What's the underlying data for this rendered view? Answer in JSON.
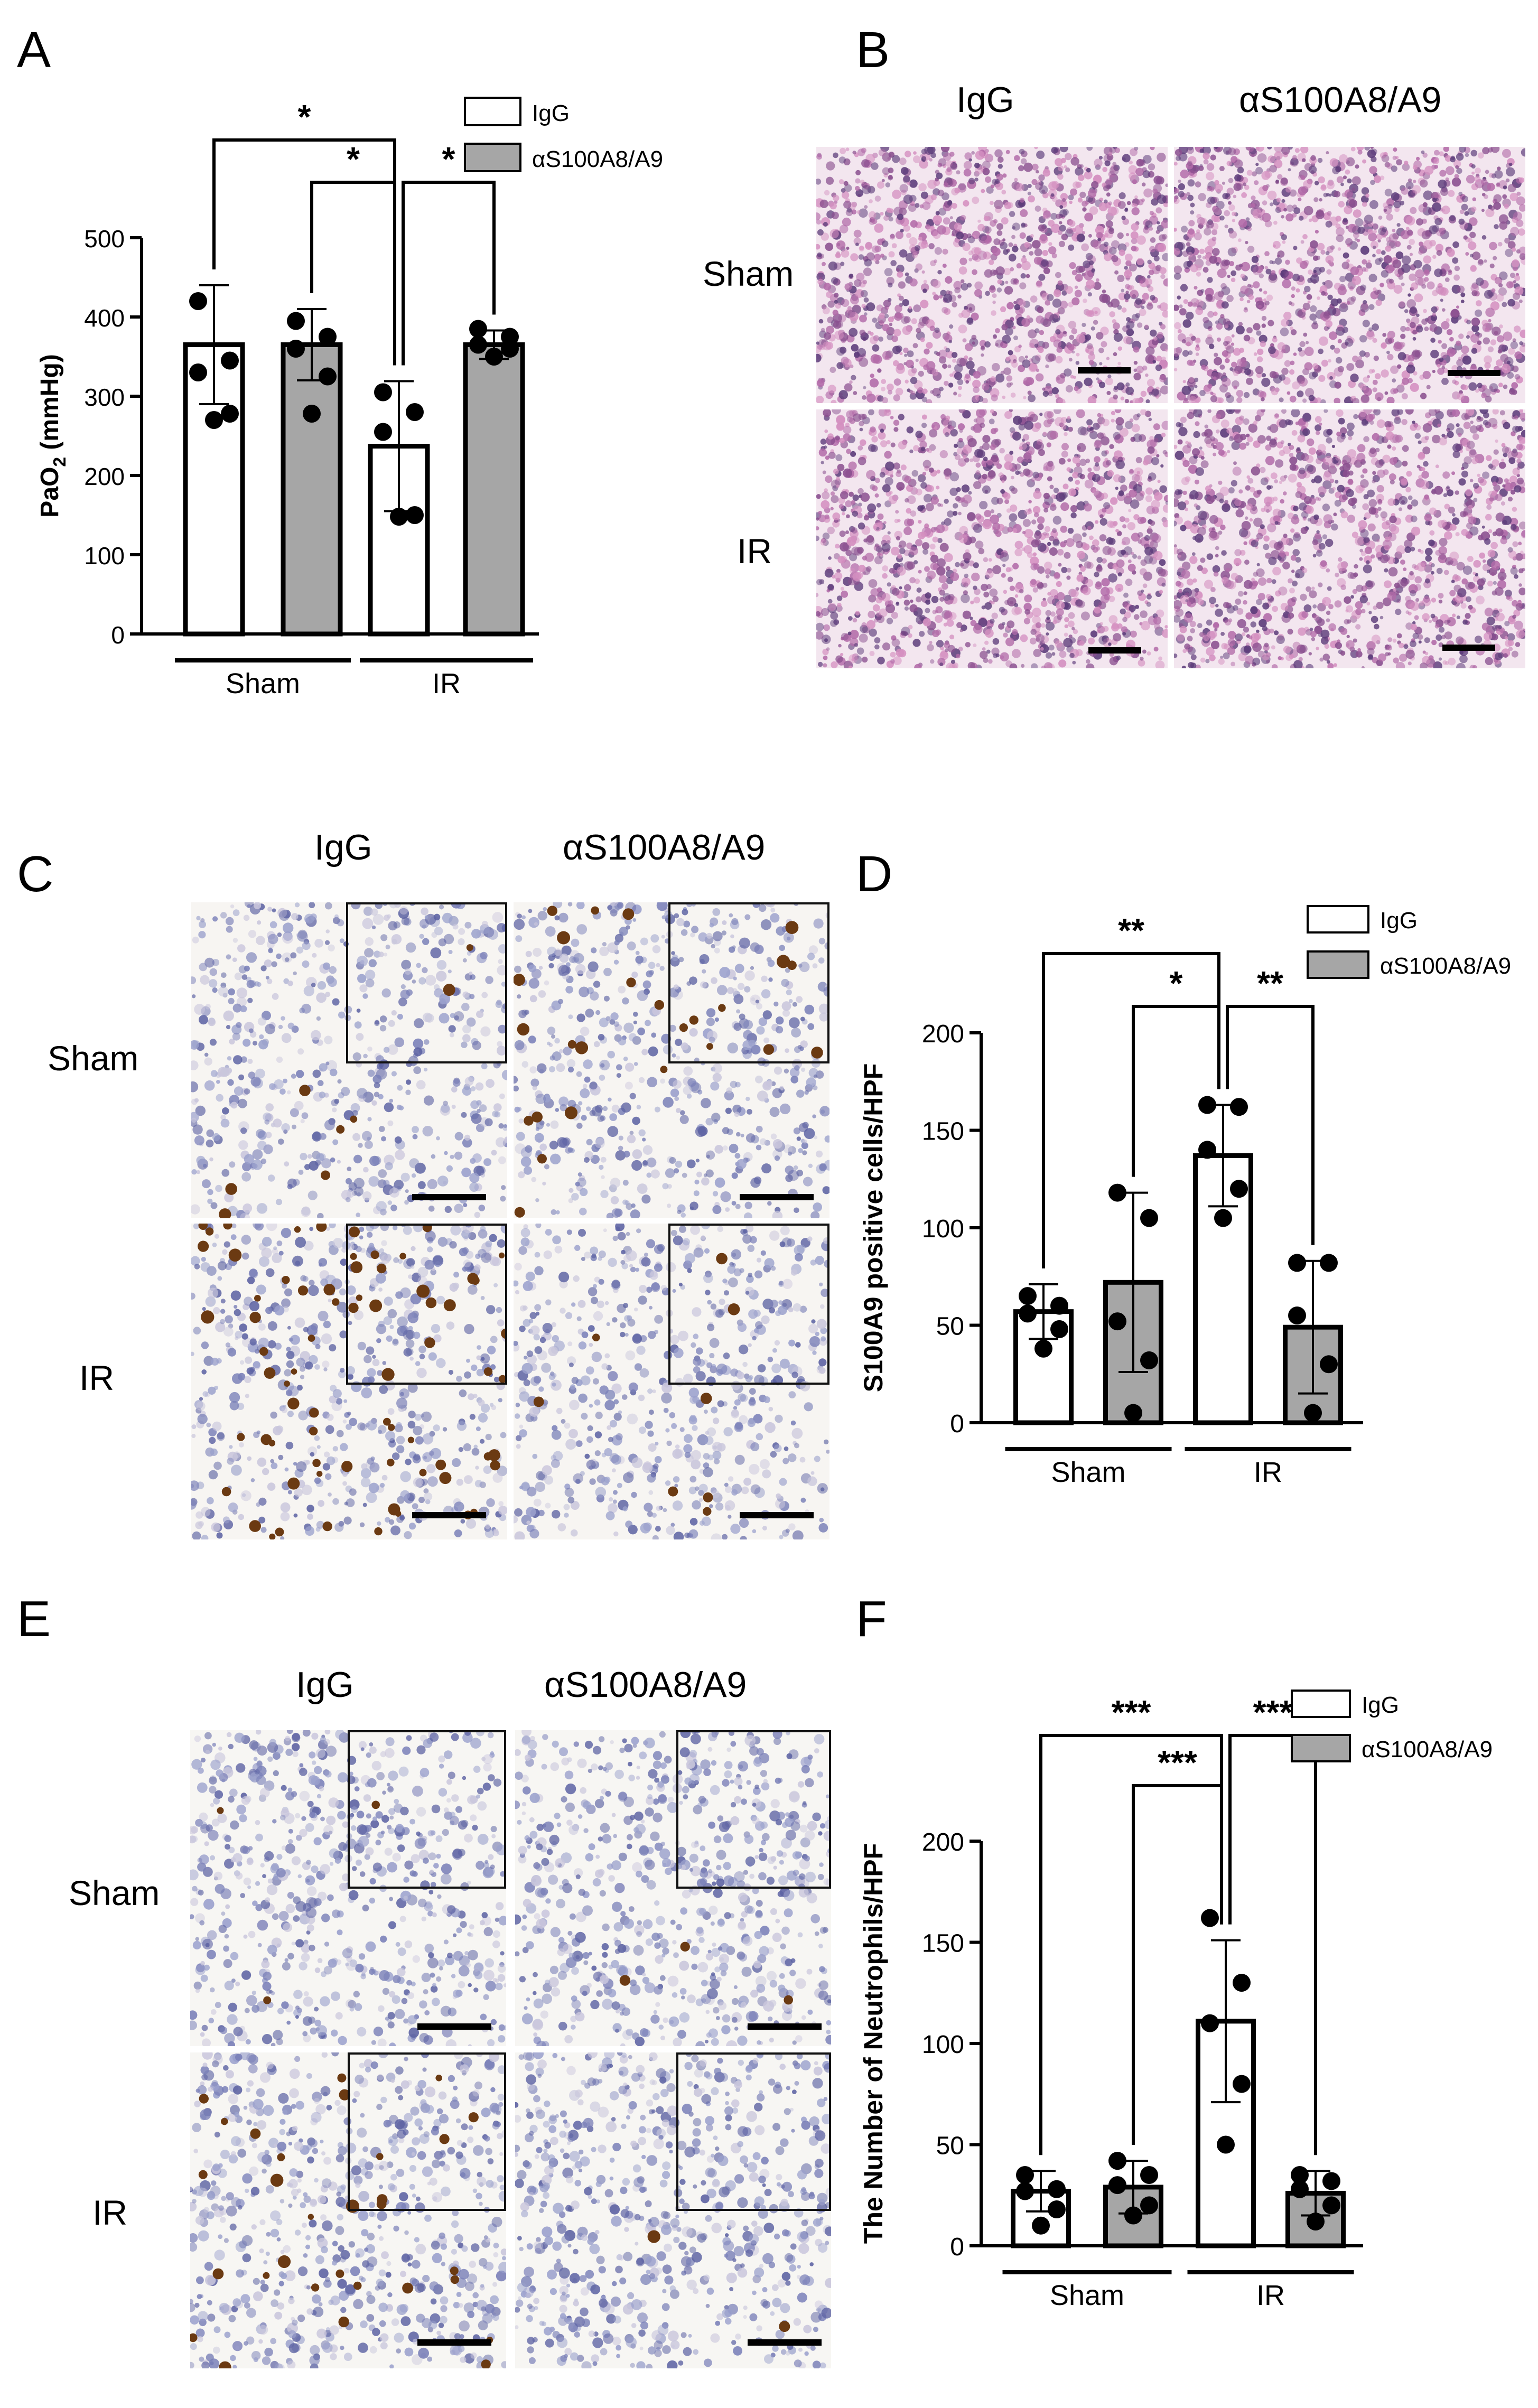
{
  "panels": {
    "A": "A",
    "B": "B",
    "C": "C",
    "D": "D",
    "E": "E",
    "F": "F"
  },
  "micrographs": {
    "col_igg": "IgG",
    "col_anti": "αS100A8/A9",
    "row_sham": "Sham",
    "row_ir": "IR"
  },
  "chart_data": [
    {
      "id": "A",
      "type": "bar",
      "categories": [
        "Sham IgG",
        "Sham αS100A8/A9",
        "IR IgG",
        "IR αS100A8/A9"
      ],
      "group_labels": [
        "Sham",
        "IR"
      ],
      "series": [
        {
          "name": "IgG",
          "color": "#ffffff",
          "bars": [
            0,
            2
          ]
        },
        {
          "name": "αS100A8/A9",
          "color": "#a6a6a6",
          "bars": [
            1,
            3
          ]
        }
      ],
      "values": [
        365,
        365,
        237,
        365
      ],
      "sd": [
        75,
        45,
        82,
        18
      ],
      "points": [
        [
          420,
          345,
          330,
          278,
          270
        ],
        [
          395,
          375,
          360,
          325,
          278
        ],
        [
          305,
          280,
          255,
          150,
          148
        ],
        [
          385,
          375,
          365,
          360,
          350
        ]
      ],
      "ylabel": "PaO2 (mmHg)",
      "ylabel_main": "PaO",
      "ylabel_sub": "2",
      "ylabel_unit": " (mmHg)",
      "ylim": [
        0,
        500
      ],
      "yticks": [
        "0",
        "100",
        "200",
        "300",
        "400",
        "500"
      ],
      "significance": [
        {
          "from": 0,
          "to": 2,
          "label": "*",
          "level": 1
        },
        {
          "from": 1,
          "to": 2,
          "label": "*",
          "level": 0
        },
        {
          "from": 2,
          "to": 3,
          "label": "*",
          "level": 0
        }
      ],
      "legend": [
        {
          "label": "IgG",
          "color": "#ffffff"
        },
        {
          "label": "αS100A8/A9",
          "color": "#a6a6a6"
        }
      ]
    },
    {
      "id": "D",
      "type": "bar",
      "categories": [
        "Sham IgG",
        "Sham αS100A8/A9",
        "IR IgG",
        "IR αS100A8/A9"
      ],
      "group_labels": [
        "Sham",
        "IR"
      ],
      "series": [
        {
          "name": "IgG",
          "color": "#ffffff",
          "bars": [
            0,
            2
          ]
        },
        {
          "name": "αS100A8/A9",
          "color": "#a6a6a6",
          "bars": [
            1,
            3
          ]
        }
      ],
      "values": [
        57,
        72,
        137,
        49
      ],
      "sd": [
        14,
        46,
        26,
        34
      ],
      "points": [
        [
          65,
          60,
          56,
          48,
          38
        ],
        [
          118,
          105,
          52,
          32,
          5
        ],
        [
          163,
          162,
          140,
          120,
          105
        ],
        [
          82,
          82,
          55,
          30,
          5
        ]
      ],
      "ylabel": "S100A9 positive cells/HPF",
      "ylim": [
        0,
        200
      ],
      "yticks": [
        "0",
        "50",
        "100",
        "150",
        "200"
      ],
      "significance": [
        {
          "from": 0,
          "to": 2,
          "label": "**",
          "level": 1
        },
        {
          "from": 1,
          "to": 2,
          "label": "*",
          "level": 0
        },
        {
          "from": 2,
          "to": 3,
          "label": "**",
          "level": 0
        }
      ],
      "legend": [
        {
          "label": "IgG",
          "color": "#ffffff"
        },
        {
          "label": "αS100A8/A9",
          "color": "#a6a6a6"
        }
      ]
    },
    {
      "id": "F",
      "type": "bar",
      "categories": [
        "Sham IgG",
        "Sham αS100A8/A9",
        "IR IgG",
        "IR αS100A8/A9"
      ],
      "group_labels": [
        "Sham",
        "IR"
      ],
      "series": [
        {
          "name": "IgG",
          "color": "#ffffff",
          "bars": [
            0,
            2
          ]
        },
        {
          "name": "αS100A8/A9",
          "color": "#a6a6a6",
          "bars": [
            1,
            3
          ]
        }
      ],
      "values": [
        27,
        29,
        111,
        26
      ],
      "sd": [
        10,
        13,
        40,
        11
      ],
      "points": [
        [
          35,
          28,
          27,
          18,
          10
        ],
        [
          42,
          35,
          30,
          20,
          15
        ],
        [
          162,
          130,
          110,
          80,
          50
        ],
        [
          35,
          32,
          28,
          20,
          12
        ]
      ],
      "ylabel": "The Number of Neutrophils/HPF",
      "ylim": [
        0,
        200
      ],
      "yticks": [
        "0",
        "50",
        "100",
        "150",
        "200"
      ],
      "significance": [
        {
          "from": 0,
          "to": 2,
          "label": "***",
          "level": 1
        },
        {
          "from": 1,
          "to": 2,
          "label": "***",
          "level": 0
        },
        {
          "from": 2,
          "to": 3,
          "label": "***",
          "level": 1
        }
      ],
      "legend": [
        {
          "label": "IgG",
          "color": "#ffffff"
        },
        {
          "label": "αS100A8/A9",
          "color": "#a6a6a6"
        }
      ]
    }
  ]
}
